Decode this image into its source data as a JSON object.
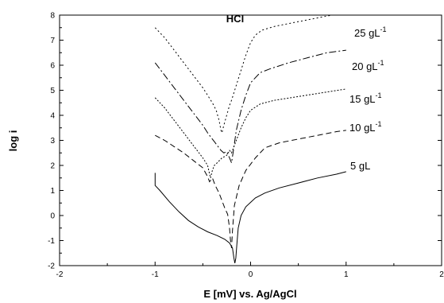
{
  "chart_data": {
    "type": "line",
    "title": "HCl",
    "xlabel": "E [mV] vs. Ag/AgCl",
    "ylabel": "log i",
    "xlim": [
      -2,
      2
    ],
    "ylim": [
      -2,
      8
    ],
    "x_ticks": [
      "-2",
      "-1",
      "0",
      "1",
      "2"
    ],
    "y_ticks": [
      "-2",
      "-1",
      "0",
      "1",
      "2",
      "3",
      "4",
      "5",
      "6",
      "7",
      "8"
    ],
    "grid": false,
    "legend": "labels beside curves",
    "series": [
      {
        "name": "5 gL",
        "label_main": "5 gL",
        "label_sup": "",
        "dash": "",
        "points": [
          [
            -1.0,
            1.7
          ],
          [
            -1.0,
            1.2
          ],
          [
            -0.95,
            1.0
          ],
          [
            -0.85,
            0.55
          ],
          [
            -0.75,
            0.15
          ],
          [
            -0.65,
            -0.2
          ],
          [
            -0.55,
            -0.45
          ],
          [
            -0.45,
            -0.65
          ],
          [
            -0.35,
            -0.8
          ],
          [
            -0.27,
            -0.95
          ],
          [
            -0.22,
            -1.1
          ],
          [
            -0.19,
            -1.3
          ],
          [
            -0.175,
            -1.7
          ],
          [
            -0.165,
            -1.9
          ],
          [
            -0.155,
            -1.7
          ],
          [
            -0.145,
            -1.2
          ],
          [
            -0.13,
            -0.5
          ],
          [
            -0.1,
            0.0
          ],
          [
            -0.05,
            0.35
          ],
          [
            0.05,
            0.7
          ],
          [
            0.15,
            0.9
          ],
          [
            0.3,
            1.1
          ],
          [
            0.5,
            1.3
          ],
          [
            0.7,
            1.5
          ],
          [
            0.9,
            1.65
          ],
          [
            1.0,
            1.75
          ]
        ]
      },
      {
        "name": "10 gL-1",
        "label_main": "10 gL",
        "label_sup": "-1",
        "dash": "7 4",
        "points": [
          [
            -1.0,
            3.2
          ],
          [
            -0.9,
            3.0
          ],
          [
            -0.8,
            2.75
          ],
          [
            -0.7,
            2.5
          ],
          [
            -0.6,
            2.2
          ],
          [
            -0.5,
            1.9
          ],
          [
            -0.45,
            1.55
          ],
          [
            -0.43,
            1.35
          ],
          [
            -0.4,
            1.5
          ],
          [
            -0.37,
            1.2
          ],
          [
            -0.33,
            0.9
          ],
          [
            -0.3,
            0.6
          ],
          [
            -0.27,
            0.3
          ],
          [
            -0.24,
            0.05
          ],
          [
            -0.22,
            -0.5
          ],
          [
            -0.21,
            -1.0
          ],
          [
            -0.2,
            -1.3
          ],
          [
            -0.19,
            -0.6
          ],
          [
            -0.17,
            0.4
          ],
          [
            -0.12,
            1.2
          ],
          [
            -0.05,
            1.8
          ],
          [
            0.05,
            2.3
          ],
          [
            0.15,
            2.7
          ],
          [
            0.3,
            2.9
          ],
          [
            0.5,
            3.05
          ],
          [
            0.7,
            3.2
          ],
          [
            0.9,
            3.35
          ],
          [
            1.0,
            3.4
          ]
        ]
      },
      {
        "name": "15 gL-1",
        "label_main": "15 gL",
        "label_sup": "-1",
        "dash": "2 2",
        "points": [
          [
            -1.0,
            4.7
          ],
          [
            -0.9,
            4.3
          ],
          [
            -0.8,
            3.8
          ],
          [
            -0.7,
            3.3
          ],
          [
            -0.6,
            2.8
          ],
          [
            -0.5,
            2.3
          ],
          [
            -0.45,
            2.0
          ],
          [
            -0.42,
            1.5
          ],
          [
            -0.4,
            1.8
          ],
          [
            -0.38,
            2.0
          ],
          [
            -0.35,
            2.1
          ],
          [
            -0.3,
            2.3
          ],
          [
            -0.25,
            2.4
          ],
          [
            -0.22,
            2.6
          ],
          [
            -0.2,
            2.5
          ],
          [
            -0.18,
            2.7
          ],
          [
            -0.15,
            3.0
          ],
          [
            -0.1,
            3.5
          ],
          [
            -0.05,
            3.9
          ],
          [
            0.0,
            4.2
          ],
          [
            0.1,
            4.45
          ],
          [
            0.25,
            4.6
          ],
          [
            0.5,
            4.75
          ],
          [
            0.75,
            4.9
          ],
          [
            1.0,
            5.05
          ]
        ]
      },
      {
        "name": "20 gL-1",
        "label_main": "20 gL",
        "label_sup": "-1",
        "dash": "9 3 2 3",
        "points": [
          [
            -1.0,
            6.1
          ],
          [
            -0.9,
            5.6
          ],
          [
            -0.8,
            5.1
          ],
          [
            -0.7,
            4.6
          ],
          [
            -0.6,
            4.1
          ],
          [
            -0.5,
            3.6
          ],
          [
            -0.45,
            3.3
          ],
          [
            -0.4,
            3.05
          ],
          [
            -0.37,
            2.9
          ],
          [
            -0.34,
            2.75
          ],
          [
            -0.31,
            2.6
          ],
          [
            -0.28,
            2.5
          ],
          [
            -0.25,
            2.55
          ],
          [
            -0.22,
            2.3
          ],
          [
            -0.2,
            2.1
          ],
          [
            -0.18,
            2.6
          ],
          [
            -0.15,
            3.4
          ],
          [
            -0.1,
            4.2
          ],
          [
            -0.05,
            4.8
          ],
          [
            0.0,
            5.3
          ],
          [
            0.1,
            5.7
          ],
          [
            0.2,
            5.85
          ],
          [
            0.4,
            6.1
          ],
          [
            0.6,
            6.3
          ],
          [
            0.8,
            6.5
          ],
          [
            1.0,
            6.6
          ]
        ]
      },
      {
        "name": "25 gL-1",
        "label_main": "25 gL",
        "label_sup": "-1",
        "dash": "2 3",
        "points": [
          [
            -1.0,
            7.5
          ],
          [
            -0.9,
            7.1
          ],
          [
            -0.8,
            6.6
          ],
          [
            -0.7,
            6.1
          ],
          [
            -0.6,
            5.6
          ],
          [
            -0.5,
            5.1
          ],
          [
            -0.45,
            4.8
          ],
          [
            -0.4,
            4.5
          ],
          [
            -0.36,
            4.2
          ],
          [
            -0.33,
            3.8
          ],
          [
            -0.31,
            3.4
          ],
          [
            -0.3,
            3.3
          ],
          [
            -0.28,
            3.6
          ],
          [
            -0.25,
            4.0
          ],
          [
            -0.22,
            4.4
          ],
          [
            -0.2,
            4.6
          ],
          [
            -0.15,
            5.2
          ],
          [
            -0.1,
            5.8
          ],
          [
            -0.05,
            6.4
          ],
          [
            0.0,
            6.9
          ],
          [
            0.05,
            7.2
          ],
          [
            0.12,
            7.4
          ],
          [
            0.25,
            7.55
          ],
          [
            0.45,
            7.7
          ],
          [
            0.65,
            7.85
          ],
          [
            0.85,
            8.0
          ]
        ]
      }
    ]
  }
}
